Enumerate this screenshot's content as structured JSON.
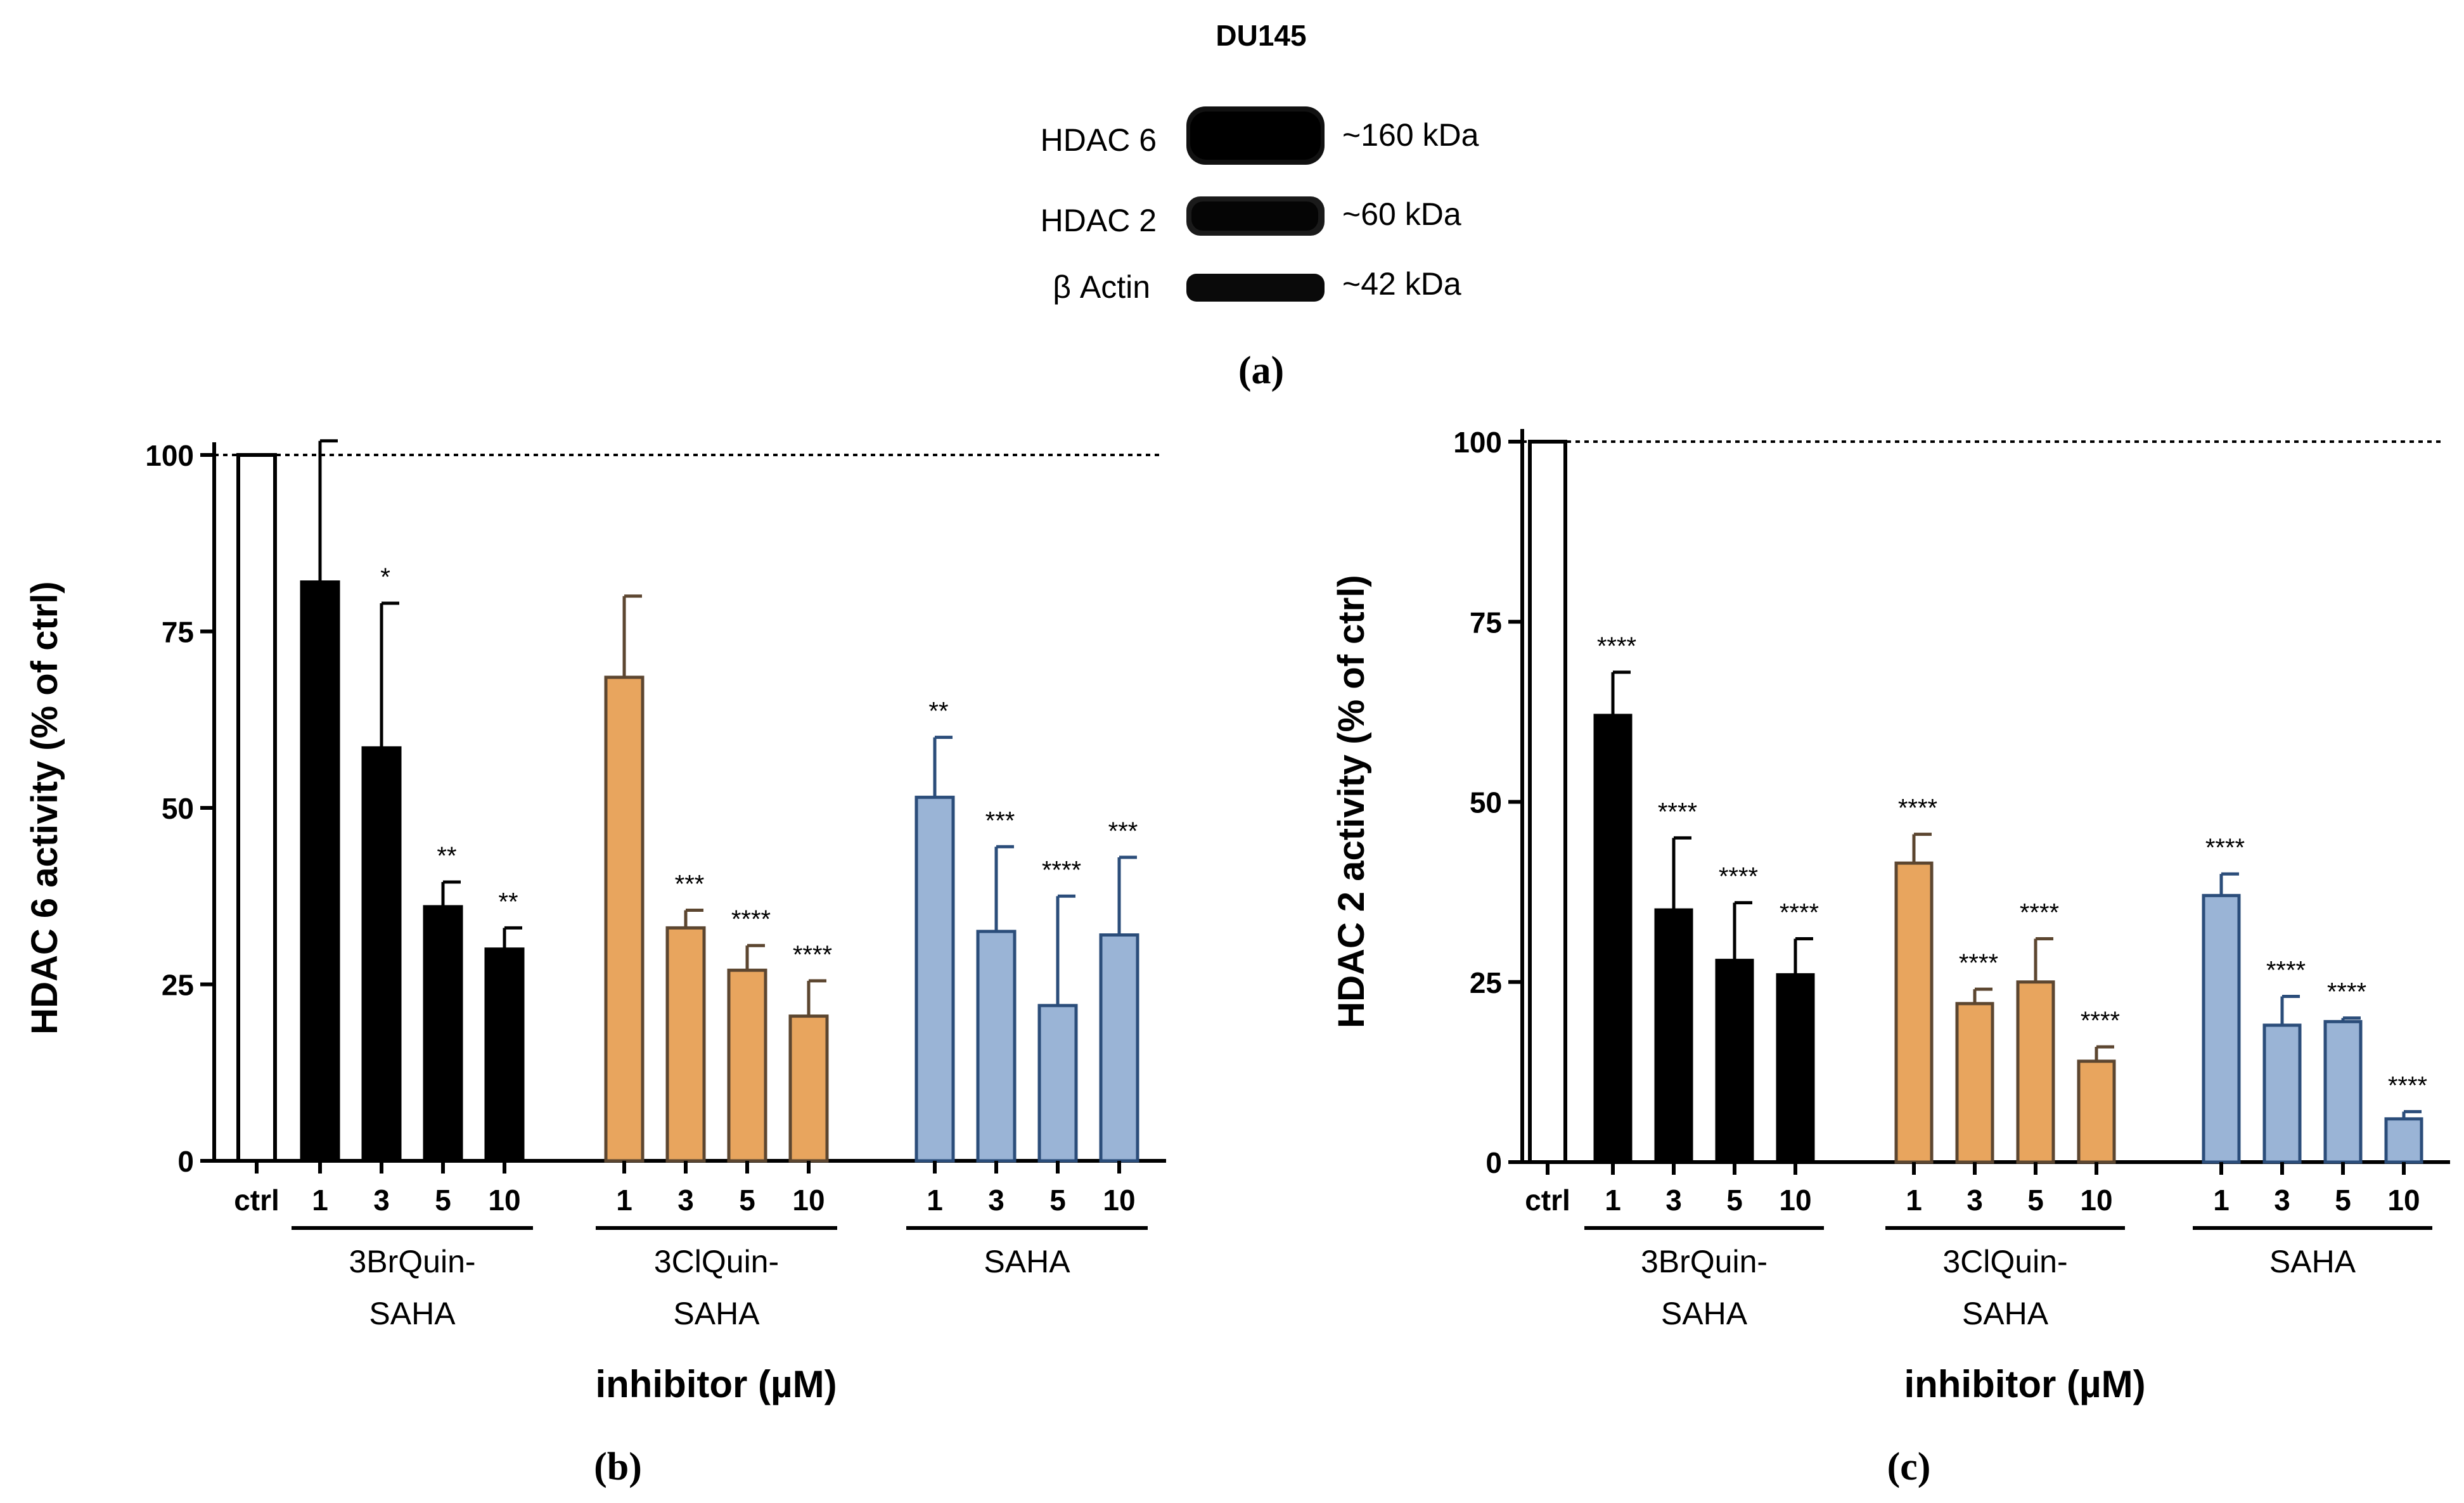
{
  "panel_a": {
    "cell_line": "DU145",
    "label": "(a)",
    "rows": [
      {
        "protein": "HDAC 6",
        "size": "~160 kDa"
      },
      {
        "protein": "HDAC 2",
        "size": "~60 kDa"
      },
      {
        "protein": "β Actin",
        "size": "~42 kDa"
      }
    ]
  },
  "colors": {
    "ctrl": "#ffffff",
    "br": "#000000",
    "cl": "#e8a55e",
    "saha": "#9ab4d6",
    "cl_edge": "#5c4630",
    "saha_edge": "#2b4d7a"
  },
  "chart_data": [
    {
      "type": "bar",
      "panel_label": "(b)",
      "ylabel": "HDAC 6 activity (% of ctrl)",
      "xlabel": "inhibitor (µM)",
      "ylim": [
        0,
        100
      ],
      "yticks": [
        0,
        25,
        50,
        75,
        100
      ],
      "reference_line": 100,
      "control": {
        "label": "ctrl",
        "value": 100
      },
      "groups": [
        {
          "name_line1": "3BrQuin-",
          "name_line2": "SAHA",
          "color_key": "br",
          "concentrations": [
            "1",
            "3",
            "5",
            "10"
          ],
          "values": [
            82,
            58.5,
            36,
            30
          ],
          "errors": [
            20,
            20.5,
            3.5,
            3
          ],
          "significance": [
            "",
            "*",
            "**",
            "**"
          ]
        },
        {
          "name_line1": "3ClQuin-",
          "name_line2": "SAHA",
          "color_key": "cl",
          "concentrations": [
            "1",
            "3",
            "5",
            "10"
          ],
          "values": [
            68.5,
            33,
            27,
            20.5
          ],
          "errors": [
            11.5,
            2.5,
            3.5,
            5
          ],
          "significance": [
            "",
            "***",
            "****",
            "****"
          ]
        },
        {
          "name_line1": "SAHA",
          "name_line2": "",
          "color_key": "saha",
          "concentrations": [
            "1",
            "3",
            "5",
            "10"
          ],
          "values": [
            51.5,
            32.5,
            22,
            32
          ],
          "errors": [
            8.5,
            12,
            15.5,
            11
          ],
          "significance": [
            "**",
            "***",
            "****",
            "***"
          ]
        }
      ]
    },
    {
      "type": "bar",
      "panel_label": "(c)",
      "ylabel": "HDAC 2 activity (% of ctrl)",
      "xlabel": "inhibitor (µM)",
      "ylim": [
        0,
        100
      ],
      "yticks": [
        0,
        25,
        50,
        75,
        100
      ],
      "reference_line": 100,
      "control": {
        "label": "ctrl",
        "value": 100
      },
      "groups": [
        {
          "name_line1": "3BrQuin-",
          "name_line2": "SAHA",
          "color_key": "br",
          "concentrations": [
            "1",
            "3",
            "5",
            "10"
          ],
          "values": [
            62,
            35,
            28,
            26
          ],
          "errors": [
            6,
            10,
            8,
            5
          ],
          "significance": [
            "****",
            "****",
            "****",
            "****"
          ]
        },
        {
          "name_line1": "3ClQuin-",
          "name_line2": "SAHA",
          "color_key": "cl",
          "concentrations": [
            "1",
            "3",
            "5",
            "10"
          ],
          "values": [
            41.5,
            22,
            25,
            14
          ],
          "errors": [
            4,
            2,
            6,
            2
          ],
          "significance": [
            "****",
            "****",
            "****",
            "****"
          ]
        },
        {
          "name_line1": "SAHA",
          "name_line2": "",
          "color_key": "saha",
          "concentrations": [
            "1",
            "3",
            "5",
            "10"
          ],
          "values": [
            37,
            19,
            19.5,
            6
          ],
          "errors": [
            3,
            4,
            0.5,
            1
          ],
          "significance": [
            "****",
            "****",
            "****",
            "****"
          ]
        }
      ]
    }
  ]
}
